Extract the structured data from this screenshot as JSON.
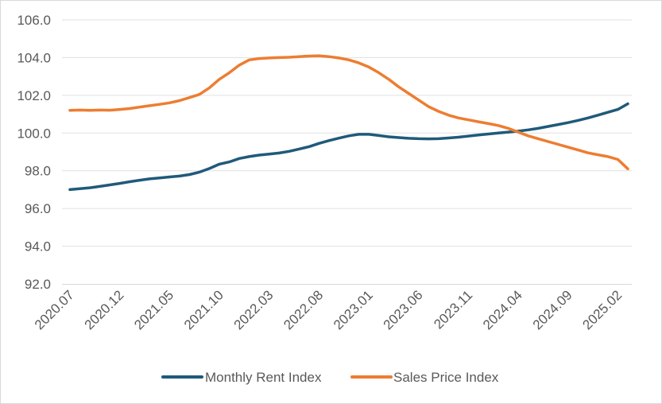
{
  "chart_data": {
    "type": "line",
    "title": "",
    "xlabel": "",
    "ylabel": "",
    "ylim": [
      92.0,
      106.0
    ],
    "y_ticks": [
      "92.0",
      "94.0",
      "96.0",
      "98.0",
      "100.0",
      "102.0",
      "104.0",
      "106.0"
    ],
    "x_tick_labels": [
      "2020.07",
      "2020.12",
      "2021.05",
      "2021.10",
      "2022.03",
      "2022.08",
      "2023.01",
      "2023.06",
      "2023.11",
      "2024.04",
      "2024.09",
      "2025.02"
    ],
    "x_tick_positions": [
      0,
      5,
      10,
      15,
      20,
      25,
      30,
      35,
      40,
      45,
      50,
      55
    ],
    "legend_position": "bottom",
    "grid": true,
    "series": [
      {
        "name": "Monthly Rent Index",
        "color": "#1f5a7a",
        "values": [
          97.0,
          97.05,
          97.1,
          97.17,
          97.25,
          97.33,
          97.42,
          97.5,
          97.57,
          97.62,
          97.67,
          97.72,
          97.8,
          97.93,
          98.12,
          98.35,
          98.47,
          98.65,
          98.75,
          98.83,
          98.88,
          98.94,
          99.03,
          99.15,
          99.28,
          99.45,
          99.6,
          99.73,
          99.85,
          99.93,
          99.93,
          99.87,
          99.8,
          99.76,
          99.72,
          99.7,
          99.69,
          99.7,
          99.74,
          99.78,
          99.84,
          99.9,
          99.95,
          100.0,
          100.05,
          100.1,
          100.17,
          100.25,
          100.35,
          100.45,
          100.55,
          100.67,
          100.8,
          100.95,
          101.1,
          101.25,
          101.55
        ]
      },
      {
        "name": "Sales Price Index",
        "color": "#ed7d31",
        "values": [
          101.2,
          101.22,
          101.2,
          101.22,
          101.21,
          101.25,
          101.3,
          101.38,
          101.45,
          101.52,
          101.6,
          101.72,
          101.88,
          102.05,
          102.4,
          102.85,
          103.2,
          103.6,
          103.88,
          103.95,
          103.98,
          104.0,
          104.02,
          104.05,
          104.08,
          104.1,
          104.05,
          103.98,
          103.88,
          103.72,
          103.5,
          103.2,
          102.85,
          102.45,
          102.1,
          101.75,
          101.4,
          101.15,
          100.95,
          100.8,
          100.7,
          100.6,
          100.5,
          100.4,
          100.25,
          100.05,
          99.85,
          99.7,
          99.55,
          99.4,
          99.25,
          99.1,
          98.95,
          98.85,
          98.75,
          98.6,
          98.1
        ]
      }
    ]
  }
}
